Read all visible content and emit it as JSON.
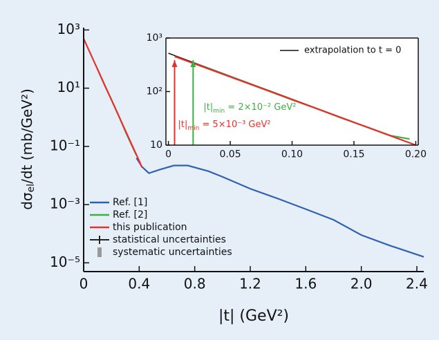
{
  "chart_data": [
    {
      "type": "line",
      "log_y": true,
      "x_label": {
        "main": "|t|",
        "rest": " (GeV²)"
      },
      "y_label": {
        "main": "dσ",
        "sub": "el",
        "rest": "/dt (mb/GeV²)"
      },
      "xlim": [
        0,
        2.45
      ],
      "ylim": [
        5e-06,
        1200
      ],
      "xticks": [
        0,
        0.4,
        0.8,
        1.2,
        1.6,
        {
          "value": 2.0,
          "label": "2.0"
        },
        2.4
      ],
      "yticks": [
        {
          "value": 1000,
          "label": "10³"
        },
        {
          "value": 10,
          "label": "10¹"
        },
        {
          "value": 0.1,
          "label": "10⁻¹"
        },
        {
          "value": 0.001,
          "label": "10⁻³"
        },
        {
          "value": 1e-05,
          "label": "10⁻⁵"
        }
      ],
      "legend": "lower left",
      "series": [
        {
          "name": "Ref. [1]",
          "color": "#2e62b0",
          "x": [
            0.38,
            0.42,
            0.47,
            0.55,
            0.65,
            0.75,
            0.9,
            1.0,
            1.2,
            1.4,
            1.6,
            1.8,
            2.0,
            2.2,
            2.45
          ],
          "values": [
            0.04,
            0.02,
            0.012,
            0.016,
            0.022,
            0.022,
            0.014,
            0.009,
            0.0035,
            0.0016,
            0.0007,
            0.0003,
            9e-05,
            4e-05,
            1.6e-05
          ]
        },
        {
          "name": "Ref. [2]",
          "color": "#3cb043",
          "x": [
            0.1,
            0.15,
            0.2,
            0.25,
            0.3,
            0.35,
            0.38
          ],
          "values": [
            45,
            13,
            4,
            1.2,
            0.33,
            0.1,
            0.05
          ]
        },
        {
          "name": "this publication",
          "color": "#e8302a",
          "x": [
            0,
            0.05,
            0.1,
            0.15,
            0.2,
            0.25,
            0.3,
            0.35,
            0.4,
            0.42
          ],
          "values": [
            500,
            150,
            44.7,
            13.3,
            4,
            1.19,
            0.355,
            0.106,
            0.032,
            0.019
          ]
        }
      ],
      "extra_legend": [
        {
          "name": "statistical uncertainties",
          "color": "#222222"
        },
        {
          "name": "systematic uncertainties",
          "color": "#999999"
        }
      ]
    },
    {
      "type": "line",
      "log_y": true,
      "xlim": [
        -0.002,
        0.202
      ],
      "ylim": [
        10,
        1000
      ],
      "xticks": [
        0,
        0.05,
        {
          "value": 0.1,
          "label": "0.10"
        },
        0.15,
        {
          "value": 0.2,
          "label": "0.20"
        }
      ],
      "yticks": [
        10,
        {
          "value": 100,
          "label": "10²"
        },
        {
          "value": 1000,
          "label": "10³"
        }
      ],
      "legend": "upper right",
      "series": [
        {
          "name": "extrapolation to t = 0",
          "color": "#111111",
          "x": [
            0,
            0.2
          ],
          "values": [
            520,
            10
          ]
        },
        {
          "color": "#3cb043",
          "x": [
            0.02,
            0.05,
            0.08,
            0.1,
            0.12,
            0.14,
            0.16,
            0.18,
            0.195
          ],
          "values": [
            340,
            190,
            105,
            70,
            48,
            32,
            22,
            15,
            13
          ]
        },
        {
          "color": "#e8302a",
          "x": [
            0.005,
            0.05,
            0.1,
            0.15,
            0.2
          ],
          "values": [
            453,
            188,
            71,
            26.6,
            10
          ]
        }
      ],
      "arrows": [
        {
          "x": 0.02,
          "color": "#3cb043",
          "main": "|t|",
          "sub": "min",
          "rest": " = 2×10⁻² GeV²"
        },
        {
          "x": 0.005,
          "color": "#e8302a",
          "main": "|t|",
          "sub": "min",
          "rest": " = 5×10⁻³ GeV²"
        }
      ]
    }
  ]
}
